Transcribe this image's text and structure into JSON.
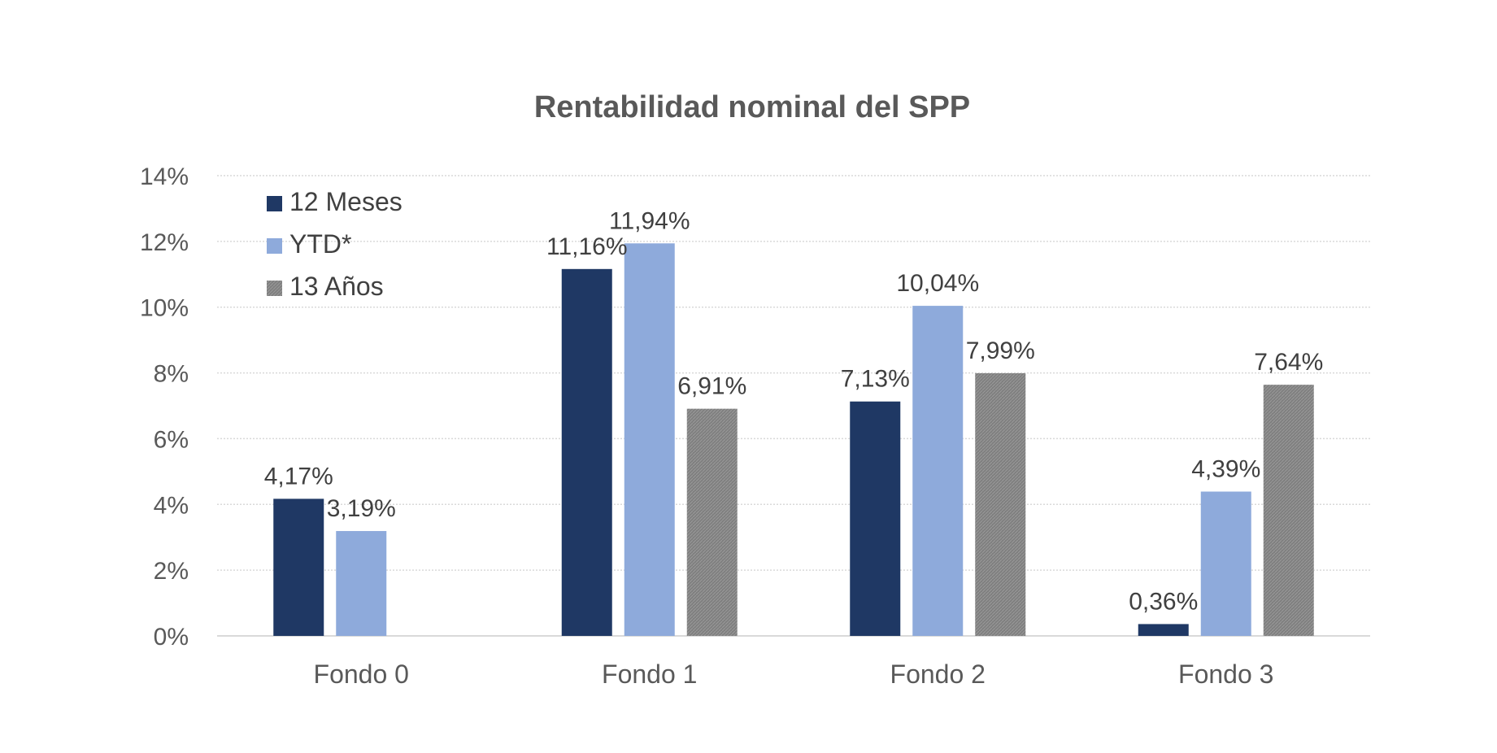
{
  "chart_data": {
    "type": "bar",
    "title": "Rentabilidad nominal del SPP",
    "categories": [
      "Fondo 0",
      "Fondo 1",
      "Fondo 2",
      "Fondo 3"
    ],
    "ylim": [
      0,
      14
    ],
    "yticks": [
      0,
      2,
      4,
      6,
      8,
      10,
      12,
      14
    ],
    "ytick_labels": [
      "0%",
      "2%",
      "4%",
      "6%",
      "8%",
      "10%",
      "12%",
      "14%"
    ],
    "grid": true,
    "legend_position": "top-left",
    "series": [
      {
        "name": "12 Meses",
        "color": "#1f3864",
        "values": [
          4.17,
          11.16,
          7.13,
          0.36
        ],
        "labels": [
          "4,17%",
          "11,16%",
          "7,13%",
          "0,36%"
        ]
      },
      {
        "name": "YTD*",
        "color": "#8eaadb",
        "values": [
          3.19,
          11.94,
          10.04,
          4.39
        ],
        "labels": [
          "3,19%",
          "11,94%",
          "10,04%",
          "4,39%"
        ]
      },
      {
        "name": "13 Años",
        "color": "#7f7f7f",
        "values": [
          null,
          6.91,
          7.99,
          7.64
        ],
        "labels": [
          "",
          "6,91%",
          "7,99%",
          "7,64%"
        ]
      }
    ]
  }
}
